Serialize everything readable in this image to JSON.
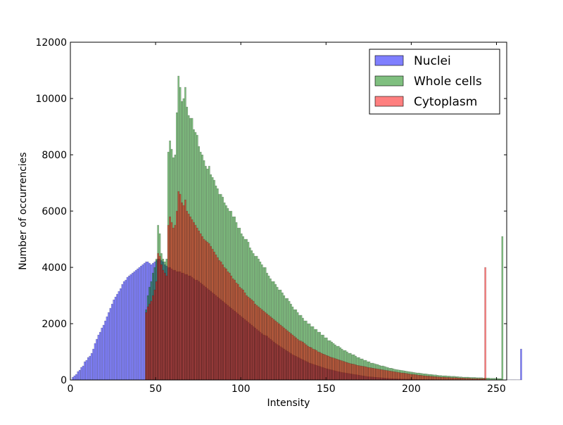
{
  "chart_data": {
    "type": "bar",
    "title": "",
    "xlabel": "Intensity",
    "ylabel": "Number of occurrencies",
    "xlim": [
      0,
      256
    ],
    "ylim": [
      0,
      12000
    ],
    "x_ticks": [
      0,
      50,
      100,
      150,
      200,
      250
    ],
    "y_ticks": [
      0,
      2000,
      4000,
      6000,
      8000,
      10000,
      12000
    ],
    "grid": false,
    "legend_position": "top-right",
    "bin_width": 1,
    "series": [
      {
        "name": "Nuclei",
        "color": "#0000ff",
        "opacity": 0.5,
        "x_start": 0,
        "values": [
          0,
          100,
          150,
          200,
          300,
          350,
          450,
          500,
          650,
          700,
          800,
          850,
          950,
          1100,
          1300,
          1450,
          1600,
          1700,
          1850,
          1950,
          2100,
          2250,
          2400,
          2550,
          2700,
          2850,
          2950,
          3050,
          3150,
          3250,
          3400,
          3500,
          3550,
          3650,
          3700,
          3750,
          3800,
          3850,
          3900,
          3950,
          4000,
          4050,
          4100,
          4150,
          4200,
          4200,
          4150,
          4100,
          4150,
          4200,
          4250,
          4300,
          4300,
          4250,
          4200,
          4100,
          4050,
          4000,
          4000,
          3950,
          3900,
          3900,
          3850,
          3850,
          3850,
          3800,
          3800,
          3750,
          3750,
          3700,
          3700,
          3650,
          3600,
          3550,
          3550,
          3500,
          3450,
          3400,
          3350,
          3300,
          3250,
          3200,
          3150,
          3100,
          3050,
          3000,
          2950,
          2900,
          2850,
          2800,
          2750,
          2700,
          2650,
          2600,
          2550,
          2500,
          2450,
          2400,
          2350,
          2300,
          2250,
          2200,
          2150,
          2100,
          2050,
          2000,
          1950,
          1900,
          1850,
          1800,
          1750,
          1700,
          1650,
          1600,
          1580,
          1560,
          1500,
          1450,
          1400,
          1350,
          1300,
          1260,
          1220,
          1180,
          1140,
          1100,
          1060,
          1020,
          980,
          940,
          900,
          870,
          840,
          810,
          780,
          750,
          720,
          690,
          660,
          630,
          600,
          580,
          560,
          540,
          520,
          500,
          480,
          460,
          440,
          420,
          400,
          385,
          370,
          355,
          340,
          325,
          310,
          295,
          280,
          270,
          260,
          250,
          240,
          230,
          220,
          210,
          200,
          190,
          180,
          170,
          160,
          150,
          140,
          130,
          120,
          115,
          110,
          105,
          100,
          95,
          90,
          85,
          80,
          75,
          70,
          65,
          60,
          55,
          50,
          50,
          45,
          45,
          40,
          40,
          35,
          35,
          30,
          30,
          30,
          30,
          25,
          25,
          25,
          20,
          20,
          20,
          20,
          20,
          15,
          15,
          15,
          15,
          15,
          15,
          10,
          10,
          10,
          10,
          10,
          10,
          10,
          10,
          10,
          10,
          10,
          10,
          10,
          10,
          10,
          5,
          5,
          5,
          5,
          5,
          5,
          5,
          5,
          5,
          5,
          5,
          5,
          5,
          5,
          5,
          5,
          5,
          5,
          5,
          5,
          5,
          5,
          5,
          5,
          5,
          5,
          5,
          5,
          5,
          5,
          5,
          5,
          5,
          5,
          5,
          1100
        ]
      },
      {
        "name": "Whole cells",
        "color": "#008000",
        "opacity": 0.5,
        "x_start": 44,
        "values": [
          2500,
          3000,
          3300,
          3500,
          3800,
          4000,
          4300,
          5500,
          5200,
          4500,
          4300,
          4200,
          4300,
          8100,
          8500,
          8200,
          7900,
          8000,
          9500,
          10800,
          10400,
          9900,
          10000,
          10400,
          9700,
          9400,
          9300,
          9300,
          8900,
          8800,
          8700,
          8300,
          8100,
          8000,
          7800,
          7600,
          7500,
          7600,
          7300,
          7200,
          7100,
          6900,
          6800,
          6600,
          6600,
          6500,
          6300,
          6200,
          6100,
          6000,
          6000,
          5800,
          5800,
          5600,
          5400,
          5400,
          5200,
          5100,
          5000,
          5000,
          4900,
          4700,
          4600,
          4500,
          4400,
          4400,
          4300,
          4200,
          4100,
          4000,
          4000,
          3800,
          3700,
          3600,
          3500,
          3500,
          3400,
          3300,
          3200,
          3200,
          3100,
          3000,
          2900,
          2900,
          2800,
          2700,
          2600,
          2500,
          2500,
          2400,
          2300,
          2300,
          2200,
          2100,
          2100,
          2000,
          2000,
          1900,
          1900,
          1800,
          1800,
          1700,
          1700,
          1600,
          1600,
          1500,
          1500,
          1400,
          1400,
          1350,
          1300,
          1250,
          1200,
          1200,
          1150,
          1100,
          1050,
          1050,
          1000,
          950,
          950,
          900,
          900,
          850,
          800,
          800,
          750,
          750,
          700,
          700,
          650,
          650,
          600,
          600,
          580,
          560,
          550,
          520,
          500,
          500,
          480,
          460,
          440,
          420,
          420,
          400,
          380,
          370,
          360,
          350,
          340,
          330,
          320,
          310,
          300,
          290,
          280,
          270,
          260,
          250,
          250,
          240,
          230,
          220,
          220,
          210,
          200,
          200,
          190,
          180,
          180,
          170,
          160,
          160,
          150,
          150,
          150,
          140,
          140,
          130,
          130,
          130,
          120,
          120,
          110,
          110,
          100,
          100,
          100,
          100,
          90,
          90,
          90,
          90,
          80,
          80,
          80,
          80,
          70,
          70,
          70,
          70,
          60,
          60,
          60,
          60,
          60,
          50,
          50,
          5100
        ]
      },
      {
        "name": "Cytoplasm",
        "color": "#ff0000",
        "opacity": 0.5,
        "x_start": 44,
        "values": [
          2400,
          2600,
          2700,
          2800,
          3000,
          3200,
          3500,
          4500,
          4400,
          4100,
          3900,
          3800,
          3700,
          5500,
          5800,
          5600,
          5400,
          5500,
          6000,
          6700,
          6600,
          6300,
          6200,
          6400,
          6000,
          5900,
          5800,
          5700,
          5600,
          5500,
          5400,
          5300,
          5200,
          5100,
          5000,
          4950,
          4900,
          4850,
          4750,
          4650,
          4550,
          4450,
          4350,
          4250,
          4200,
          4100,
          4000,
          3950,
          3850,
          3800,
          3700,
          3600,
          3550,
          3450,
          3400,
          3300,
          3250,
          3200,
          3100,
          3000,
          2950,
          2900,
          2850,
          2800,
          2700,
          2650,
          2600,
          2550,
          2500,
          2450,
          2400,
          2350,
          2300,
          2250,
          2200,
          2150,
          2100,
          2050,
          2000,
          1950,
          1900,
          1850,
          1800,
          1750,
          1700,
          1650,
          1600,
          1550,
          1500,
          1450,
          1400,
          1380,
          1350,
          1300,
          1250,
          1200,
          1170,
          1150,
          1100,
          1080,
          1050,
          1000,
          980,
          950,
          920,
          900,
          870,
          850,
          820,
          800,
          780,
          760,
          740,
          720,
          700,
          680,
          660,
          640,
          620,
          600,
          580,
          570,
          560,
          540,
          520,
          510,
          500,
          490,
          480,
          470,
          450,
          440,
          430,
          420,
          410,
          400,
          390,
          380,
          370,
          360,
          350,
          340,
          330,
          320,
          310,
          300,
          290,
          280,
          270,
          260,
          250,
          250,
          240,
          230,
          220,
          210,
          200,
          200,
          190,
          180,
          170,
          170,
          160,
          150,
          150,
          140,
          140,
          130,
          130,
          120,
          120,
          110,
          110,
          100,
          100,
          100,
          90,
          90,
          90,
          80,
          80,
          80,
          80,
          70,
          70,
          70,
          70,
          60,
          60,
          60,
          60,
          50,
          50,
          50,
          50,
          50,
          50,
          50,
          50,
          4000
        ]
      }
    ]
  }
}
